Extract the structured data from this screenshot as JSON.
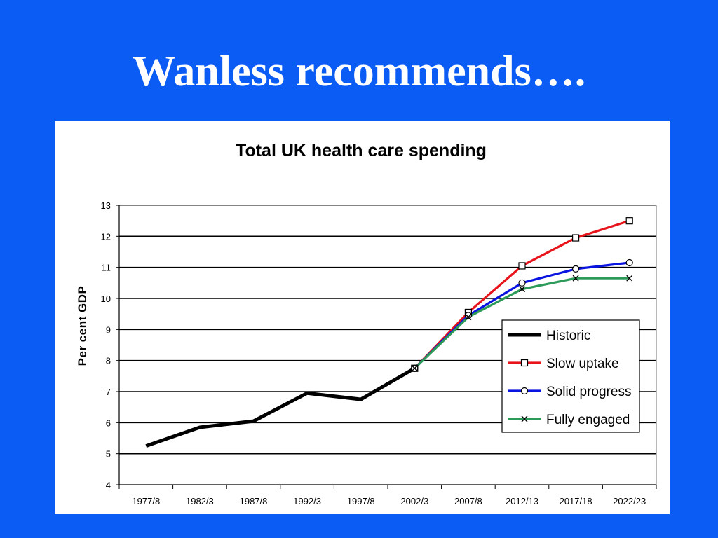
{
  "slide": {
    "title": "Wanless recommends….",
    "background_color": "#0A5CF5"
  },
  "chart_data": {
    "type": "line",
    "title": "Total UK health care spending",
    "xlabel": "",
    "ylabel": "Per cent GDP",
    "categories": [
      "1977/8",
      "1982/3",
      "1987/8",
      "1992/3",
      "1997/8",
      "2002/3",
      "2007/8",
      "2012/13",
      "2017/18",
      "2022/23"
    ],
    "ylim": [
      4,
      13
    ],
    "yticks": [
      4,
      5,
      6,
      7,
      8,
      9,
      10,
      11,
      12,
      13
    ],
    "grid": true,
    "legend_position": "lower-right",
    "series": [
      {
        "name": "Historic",
        "color": "#000000",
        "marker": "none",
        "values": [
          5.25,
          5.85,
          6.05,
          6.95,
          6.75,
          7.75,
          null,
          null,
          null,
          null
        ]
      },
      {
        "name": "Slow  uptake",
        "color": "#E8141B",
        "marker": "square",
        "values": [
          null,
          null,
          null,
          null,
          null,
          7.75,
          9.55,
          11.05,
          11.95,
          12.5
        ]
      },
      {
        "name": "Solid progress",
        "color": "#0A14E0",
        "marker": "circle",
        "values": [
          null,
          null,
          null,
          null,
          null,
          7.75,
          9.45,
          10.5,
          10.95,
          11.15
        ]
      },
      {
        "name": "Fully engaged",
        "color": "#2E9A5A",
        "marker": "x",
        "values": [
          null,
          null,
          null,
          null,
          null,
          7.75,
          9.4,
          10.3,
          10.65,
          10.65
        ]
      }
    ]
  }
}
